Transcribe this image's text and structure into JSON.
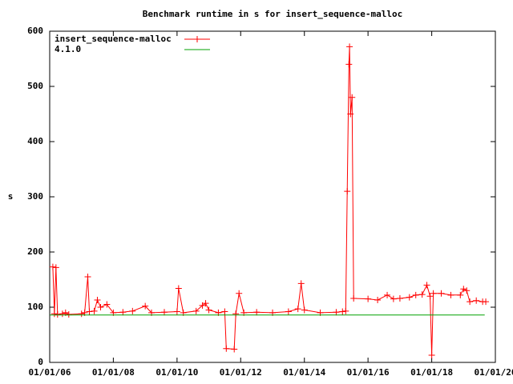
{
  "chart_data": {
    "type": "line",
    "title": "Benchmark runtime in s for insert_sequence-malloc",
    "y_label": "s",
    "xlim": [
      "01/01/06",
      "01/01/20"
    ],
    "xticks": [
      "01/01/06",
      "01/01/08",
      "01/01/10",
      "01/01/12",
      "01/01/14",
      "01/01/16",
      "01/01/18",
      "01/01/20"
    ],
    "ylim": [
      0,
      600
    ],
    "yticks": [
      0,
      100,
      200,
      300,
      400,
      500,
      600
    ],
    "series": [
      {
        "name": "insert_sequence-malloc",
        "color": "#ff0000",
        "points": true,
        "x": [
          "02/06/06",
          "02/24/06",
          "03/14/06",
          "04/01/06",
          "05/27/06",
          "07/02/06",
          "08/08/06",
          "01/01/07",
          "02/06/07",
          "03/14/07",
          "04/01/07",
          "05/27/07",
          "07/02/07",
          "08/08/07",
          "10/19/07",
          "01/01/08",
          "04/20/08",
          "08/08/08",
          "01/01/09",
          "03/14/09",
          "08/08/09",
          "01/01/10",
          "01/19/10",
          "03/14/10",
          "08/08/10",
          "10/19/10",
          "11/25/10",
          "01/01/11",
          "04/20/11",
          "07/02/11",
          "07/20/11",
          "10/19/11",
          "11/06/11",
          "12/13/11",
          "02/06/12",
          "07/02/12",
          "01/01/13",
          "07/02/13",
          "10/19/13",
          "11/25/13",
          "01/01/14",
          "07/02/14",
          "01/01/15",
          "03/14/15",
          "04/20/15",
          "05/08/15",
          "05/27/15",
          "06/03/15",
          "06/14/15",
          "07/02/15",
          "07/20/15",
          "01/01/16",
          "04/20/16",
          "08/08/16",
          "10/19/16",
          "01/01/17",
          "04/20/17",
          "07/02/17",
          "09/13/17",
          "11/06/17",
          "12/13/17",
          "01/01/18",
          "01/19/18",
          "04/20/18",
          "08/08/18",
          "11/25/18",
          "01/01/19",
          "02/06/19",
          "03/14/19",
          "05/27/19",
          "08/08/19",
          "09/13/19"
        ],
        "values": [
          173,
          88,
          172,
          87,
          88,
          90,
          87,
          88,
          90,
          155,
          92,
          93,
          113,
          100,
          105,
          90,
          91,
          93,
          102,
          90,
          91,
          92,
          134,
          90,
          93,
          103,
          107,
          95,
          90,
          92,
          25,
          24,
          88,
          125,
          90,
          91,
          90,
          92,
          97,
          143,
          95,
          90,
          91,
          92,
          93,
          310,
          540,
          572,
          450,
          480,
          116,
          115,
          113,
          122,
          115,
          116,
          118,
          122,
          123,
          140,
          120,
          13,
          125,
          125,
          122,
          122,
          133,
          130,
          110,
          112,
          110,
          110
        ]
      },
      {
        "name": "4.1.0",
        "color": "#00a000",
        "points": false,
        "x": [
          "01/01/06",
          "09/01/19"
        ],
        "values": [
          86,
          86
        ]
      }
    ]
  }
}
